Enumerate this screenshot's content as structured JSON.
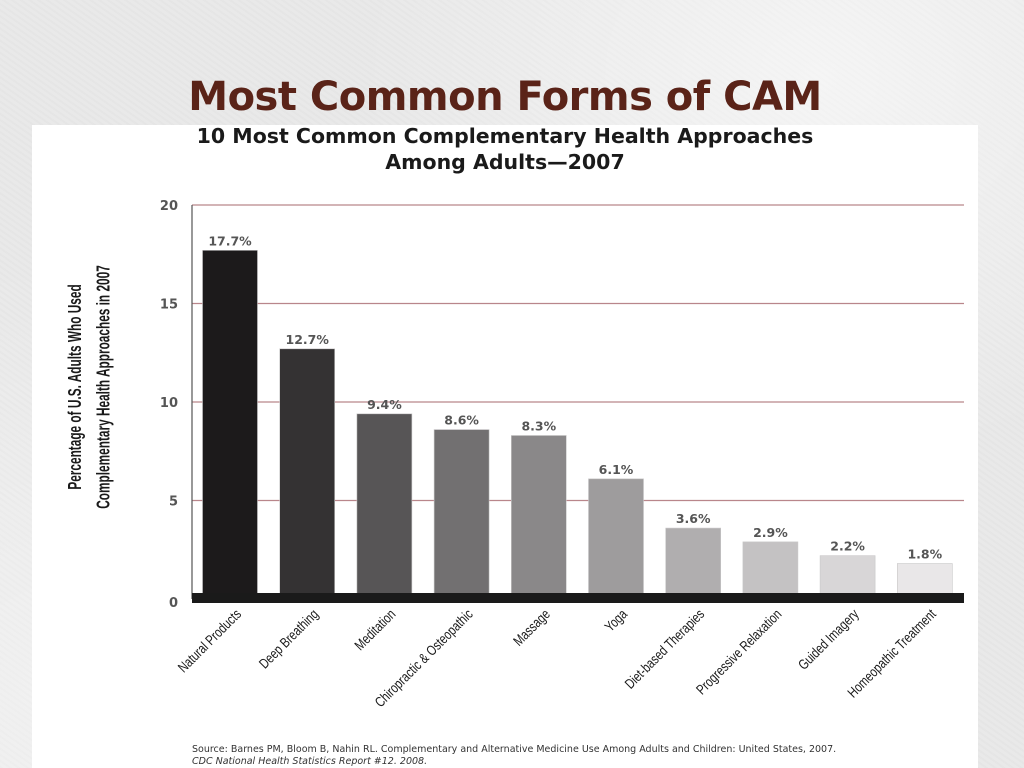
{
  "slide": {
    "title": "Most Common Forms of CAM"
  },
  "chart_data": {
    "type": "bar",
    "title_line1": "10 Most Common Complementary Health Approaches",
    "title_line2": "Among Adults—2007",
    "ylabel_line1": "Percentage of U.S. Adults Who Used",
    "ylabel_line2": "Complementary Health Approaches in 2007",
    "xlabel": "",
    "ylim": [
      0,
      20
    ],
    "yticks": [
      0,
      5,
      10,
      15,
      20
    ],
    "grid": true,
    "categories": [
      "Natural Products",
      "Deep Breathing",
      "Meditation",
      "Chiropractic & Osteopathic",
      "Massage",
      "Yoga",
      "Diet-based Therapies",
      "Progressive Relaxation",
      "Guided Imagery",
      "Homeopathic Treatment"
    ],
    "values": [
      17.7,
      12.7,
      9.4,
      8.6,
      8.3,
      6.1,
      3.6,
      2.9,
      2.2,
      1.8
    ],
    "data_labels": [
      "17.7%",
      "12.7%",
      "9.4%",
      "8.6%",
      "8.3%",
      "6.1%",
      "3.6%",
      "2.9%",
      "2.2%",
      "1.8%"
    ],
    "bar_colors": [
      "#1c1a1b",
      "#343233",
      "#575556",
      "#727071",
      "#8a8889",
      "#9e9c9d",
      "#b0aeaf",
      "#c4c2c3",
      "#d8d6d7",
      "#e9e7e8"
    ],
    "gridline_color": "#b9868b",
    "source_line1": "Source: Barnes PM, Bloom B, Nahin RL. Complementary and Alternative Medicine Use Among Adults and Children: United States, 2007.",
    "source_line2": "CDC National Health Statistics Report #12. 2008."
  }
}
